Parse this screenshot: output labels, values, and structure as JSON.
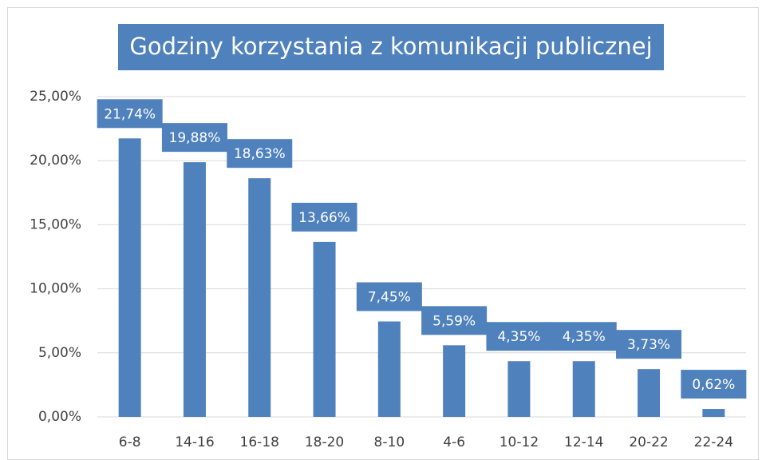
{
  "chart_data": {
    "type": "bar",
    "title": "Godziny korzystania z komunikacji publicznej",
    "categories": [
      "6-8",
      "14-16",
      "16-18",
      "18-20",
      "8-10",
      "4-6",
      "10-12",
      "12-14",
      "20-22",
      "22-24"
    ],
    "values": [
      21.74,
      19.88,
      18.63,
      13.66,
      7.45,
      5.59,
      4.35,
      4.35,
      3.73,
      0.62
    ],
    "value_labels": [
      "21,74%",
      "19,88%",
      "18,63%",
      "13,66%",
      "7,45%",
      "5,59%",
      "4,35%",
      "4,35%",
      "3,73%",
      "0,62%"
    ],
    "color": "#4f81bd",
    "ylim": [
      0,
      25
    ],
    "yticks": [
      {
        "value": 0,
        "label": "0,00%"
      },
      {
        "value": 5,
        "label": "5,00%"
      },
      {
        "value": 10,
        "label": "10,00%"
      },
      {
        "value": 15,
        "label": "15,00%"
      },
      {
        "value": 20,
        "label": "20,00%"
      },
      {
        "value": 25,
        "label": "25,00%"
      }
    ],
    "grid": true
  }
}
